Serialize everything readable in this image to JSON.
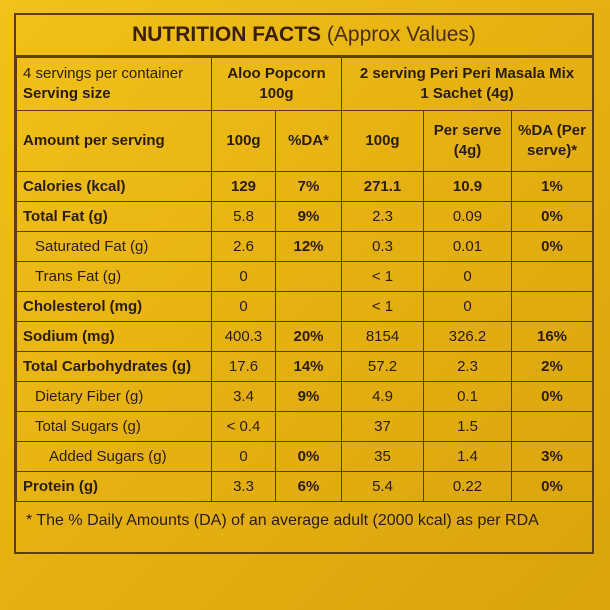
{
  "title": {
    "bold": "NUTRITION FACTS",
    "normal": "(Approx Values)"
  },
  "header": {
    "servings_per_container": "4 servings per container",
    "serving_size": "Serving size",
    "product_a_name": "Aloo Popcorn",
    "product_a_size": "100g",
    "product_b_name": "2 serving Peri Peri Masala Mix",
    "product_b_size": "1 Sachet (4g)"
  },
  "columns": {
    "amount_per_serving": "Amount per serving",
    "a_100g": "100g",
    "a_da": "%DA*",
    "b_100g": "100g",
    "b_per_serve_1": "Per serve",
    "b_per_serve_2": "(4g)",
    "b_da_1": "%DA (Per",
    "b_da_2": "serve)*"
  },
  "rows": [
    {
      "name": "Calories (kcal)",
      "a": "129",
      "a_da": "7%",
      "b": "271.1",
      "b_serve": "10.9",
      "b_da": "1%"
    },
    {
      "name": "Total Fat (g)",
      "a": "5.8",
      "a_da": "9%",
      "b": "2.3",
      "b_serve": "0.09",
      "b_da": "0%"
    },
    {
      "name": "Saturated Fat (g)",
      "a": "2.6",
      "a_da": "12%",
      "b": "0.3",
      "b_serve": "0.01",
      "b_da": "0%"
    },
    {
      "name": "Trans Fat (g)",
      "a": "0",
      "a_da": "",
      "b": "< 1",
      "b_serve": "0",
      "b_da": ""
    },
    {
      "name": "Cholesterol (mg)",
      "a": "0",
      "a_da": "",
      "b": "< 1",
      "b_serve": "0",
      "b_da": ""
    },
    {
      "name": "Sodium (mg)",
      "a": "400.3",
      "a_da": "20%",
      "b": "8154",
      "b_serve": "326.2",
      "b_da": "16%"
    },
    {
      "name": "Total Carbohydrates (g)",
      "a": "17.6",
      "a_da": "14%",
      "b": "57.2",
      "b_serve": "2.3",
      "b_da": "2%"
    },
    {
      "name": "Dietary Fiber (g)",
      "a": "3.4",
      "a_da": "9%",
      "b": "4.9",
      "b_serve": "0.1",
      "b_da": "0%"
    },
    {
      "name": "Total Sugars (g)",
      "a": "< 0.4",
      "a_da": "",
      "b": "37",
      "b_serve": "1.5",
      "b_da": ""
    },
    {
      "name": "Added Sugars (g)",
      "a": "0",
      "a_da": "0%",
      "b": "35",
      "b_serve": "1.4",
      "b_da": "3%"
    },
    {
      "name": "Protein (g)",
      "a": "3.3",
      "a_da": "6%",
      "b": "5.4",
      "b_serve": "0.22",
      "b_da": "0%"
    }
  ],
  "footnote": "* The % Daily Amounts (DA) of an average adult (2000 kcal) as per RDA"
}
